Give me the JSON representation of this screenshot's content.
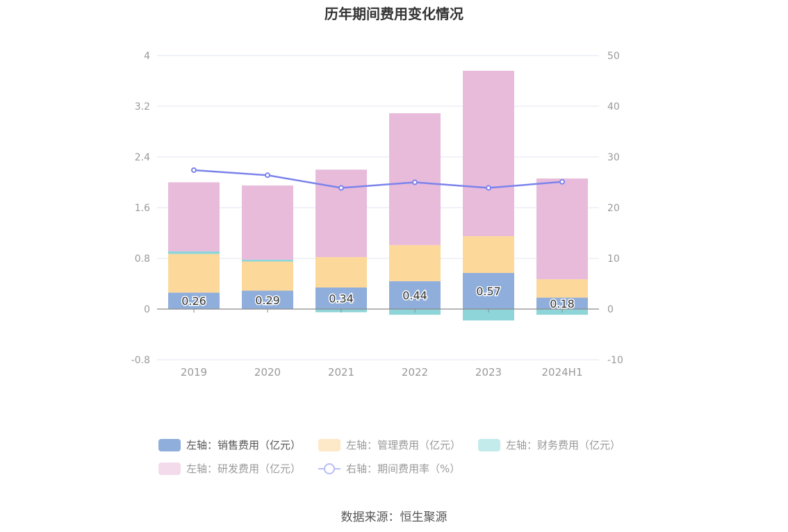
{
  "chart_data": {
    "type": "bar",
    "title": "历年期间费用变化情况",
    "categories": [
      "2019",
      "2020",
      "2021",
      "2022",
      "2023",
      "2024H1"
    ],
    "left_axis": {
      "ylim": [
        -0.8,
        4
      ],
      "ticks": [
        "4",
        "3.2",
        "2.4",
        "1.6",
        "0.8",
        "0",
        "-0.8"
      ],
      "tick_values": [
        4,
        3.2,
        2.4,
        1.6,
        0.8,
        0,
        -0.8
      ]
    },
    "right_axis": {
      "ylim": [
        -10,
        50
      ],
      "ticks": [
        "50",
        "40",
        "30",
        "20",
        "10",
        "0",
        "-10"
      ],
      "tick_values": [
        50,
        40,
        30,
        20,
        10,
        0,
        -10
      ]
    },
    "series": [
      {
        "name": "左轴：销售费用（亿元）",
        "kind": "bar",
        "color": "#8faedb",
        "values": [
          0.26,
          0.29,
          0.34,
          0.44,
          0.57,
          0.18
        ],
        "labels": [
          "0.26",
          "0.29",
          "0.34",
          "0.44",
          "0.57",
          "0.18"
        ]
      },
      {
        "name": "左轴：管理费用（亿元）",
        "kind": "bar",
        "color": "#fdd89b",
        "values": [
          0.61,
          0.46,
          0.48,
          0.57,
          0.58,
          0.29
        ]
      },
      {
        "name": "左轴：财务费用（亿元）",
        "kind": "bar",
        "color": "#8dd5d8",
        "values": [
          0.04,
          0.03,
          -0.05,
          -0.09,
          -0.18,
          -0.09
        ]
      },
      {
        "name": "左轴：研发费用（亿元）",
        "kind": "bar",
        "color": "#e8bbdb",
        "values": [
          1.09,
          1.17,
          1.38,
          2.08,
          2.61,
          1.59
        ]
      },
      {
        "name": "右轴：期间费用率（%）",
        "kind": "line",
        "axis": "right",
        "color": "#7b83eb",
        "values": [
          27.4,
          26.4,
          23.9,
          25.0,
          23.9,
          25.1
        ]
      }
    ],
    "grid": true,
    "legend_position": "bottom"
  },
  "source": "数据来源：恒生聚源"
}
